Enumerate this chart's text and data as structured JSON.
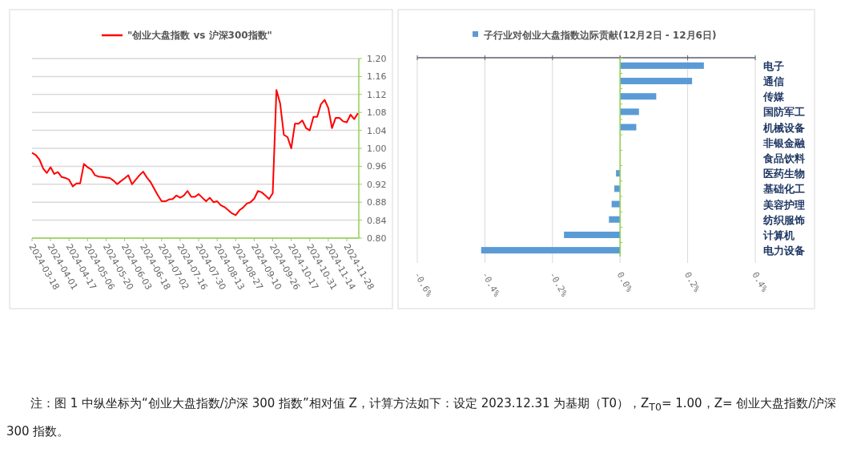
{
  "chart_data": [
    {
      "type": "line",
      "categories": [
        "2024-03-18",
        null,
        null,
        null,
        null,
        "2024-04-01",
        null,
        null,
        null,
        null,
        "2024-04-17",
        null,
        null,
        null,
        null,
        "2024-05-06",
        null,
        null,
        null,
        null,
        "2024-05-20",
        null,
        null,
        null,
        null,
        "2024-06-03",
        null,
        null,
        null,
        null,
        "2024-06-18",
        null,
        null,
        null,
        null,
        "2024-07-02",
        null,
        null,
        null,
        null,
        "2024-07-16",
        null,
        null,
        null,
        null,
        "2024-07-30",
        null,
        null,
        null,
        null,
        "2024-08-13",
        null,
        null,
        null,
        null,
        "2024-08-27",
        null,
        null,
        null,
        null,
        "2024-09-10",
        null,
        null,
        null,
        null,
        "2024-09-26",
        null,
        null,
        null,
        null,
        "2024-10-17",
        null,
        null,
        null,
        null,
        "2024-10-31",
        null,
        null,
        null,
        null,
        "2024-11-14",
        null,
        null,
        null,
        null,
        "2024-11-28",
        null,
        null,
        null
      ],
      "series": [
        {
          "name": "\"创业大盘指数 vs 沪深300指数\"",
          "color": "#ff0000",
          "values": [
            0.99,
            0.985,
            0.975,
            0.955,
            0.945,
            0.958,
            0.943,
            0.947,
            0.936,
            0.934,
            0.93,
            0.915,
            0.922,
            0.922,
            0.965,
            0.958,
            0.953,
            0.94,
            0.937,
            0.936,
            0.935,
            0.934,
            0.928,
            0.92,
            0.927,
            0.933,
            0.94,
            0.92,
            0.93,
            0.94,
            0.948,
            0.935,
            0.925,
            0.91,
            0.895,
            0.882,
            0.882,
            0.886,
            0.887,
            0.895,
            0.89,
            0.895,
            0.905,
            0.892,
            0.892,
            0.898,
            0.89,
            0.882,
            0.89,
            0.88,
            0.882,
            0.873,
            0.869,
            0.862,
            0.855,
            0.851,
            0.862,
            0.868,
            0.877,
            0.88,
            0.888,
            0.905,
            0.902,
            0.895,
            0.887,
            0.9,
            1.13,
            1.1,
            1.03,
            1.025,
            1.0,
            1.055,
            1.055,
            1.062,
            1.045,
            1.04,
            1.07,
            1.07,
            1.098,
            1.108,
            1.09,
            1.045,
            1.068,
            1.068,
            1.06,
            1.058,
            1.075,
            1.065,
            1.078
          ]
        }
      ],
      "ylim": [
        0.8,
        1.2
      ],
      "yticks": [
        {
          "value": 0.8,
          "label": "0.80"
        },
        {
          "value": 0.84,
          "label": "0.84"
        },
        {
          "value": 0.88,
          "label": "0.88"
        },
        {
          "value": 0.92,
          "label": "0.92"
        },
        {
          "value": 0.96,
          "label": "0.96"
        },
        {
          "value": 1.0,
          "label": "1.00"
        },
        {
          "value": 1.04,
          "label": "1.04"
        },
        {
          "value": 1.08,
          "label": "1.08"
        },
        {
          "value": 1.12,
          "label": "1.12"
        },
        {
          "value": 1.16,
          "label": "1.16"
        },
        {
          "value": 1.2,
          "label": "1.20"
        }
      ],
      "grid": "y",
      "legend": "top",
      "annotations": [
        "注：图 1 中纵坐标为“创业大盘指数/沪深 300 指数”相对值 Z，计算方法如下：设定 2023.12.31 为基期（T0），Z$_{T0}$= 1.00，Z= 创业大盘指数/沪深 300 指数。"
      ]
    },
    {
      "type": "bar",
      "orientation": "horizontal",
      "categories": [
        "电子",
        "通信",
        "传媒",
        "国防军工",
        "机械设备",
        "非银金融",
        "食品饮料",
        "医药生物",
        "基础化工",
        "美容护理",
        "纺织服饰",
        "计算机",
        "电力设备"
      ],
      "series": [
        {
          "name": "子行业对创业大盘指数边际贡献(12月2日 - 12月6日)",
          "color": "#5b9bd5",
          "values": [
            0.248,
            0.213,
            0.107,
            0.056,
            0.048,
            0,
            0,
            -0.012,
            -0.017,
            -0.025,
            -0.033,
            -0.166,
            -0.411
          ]
        }
      ],
      "xlim": [
        -0.6,
        0.4
      ],
      "xticks": [
        {
          "value": -0.6,
          "label": "-0.6%"
        },
        {
          "value": -0.4,
          "label": "-0.4%"
        },
        {
          "value": -0.2,
          "label": "-0.2%"
        },
        {
          "value": 0,
          "label": "0.0%"
        },
        {
          "value": 0.2,
          "label": "0.2%"
        },
        {
          "value": 0.4,
          "label": "0.4%"
        }
      ],
      "grid": "x",
      "legend": "top",
      "ref_lines": [
        {
          "axis": "x",
          "value": 0,
          "color": "#92d050"
        }
      ]
    }
  ]
}
